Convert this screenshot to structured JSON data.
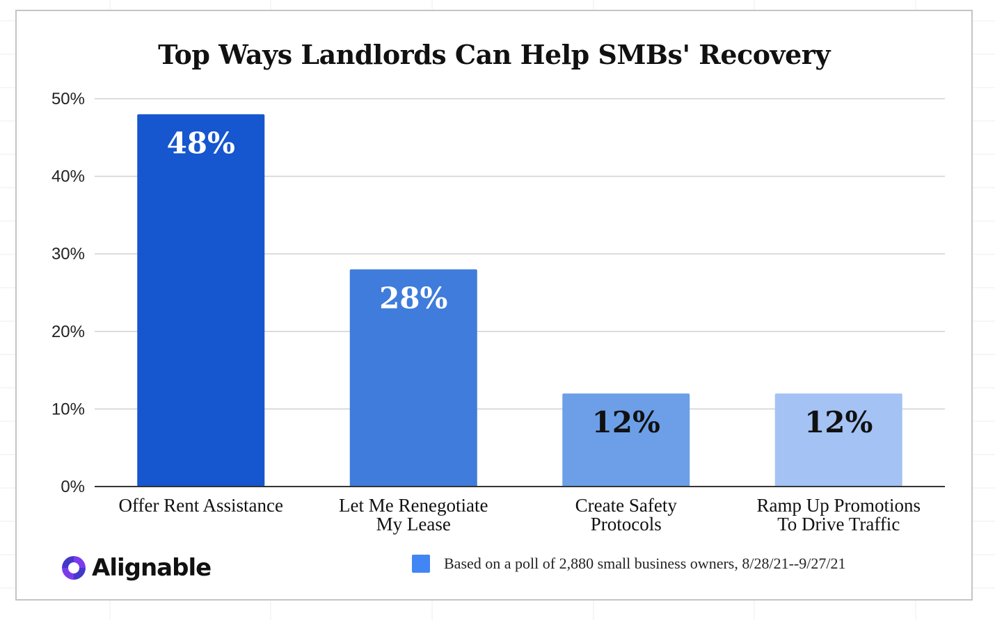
{
  "page": {
    "title": "Top Ways Landlords Can Help SMBs' Recovery"
  },
  "chart_data": {
    "type": "bar",
    "title": "Top Ways Landlords Can Help SMBs' Recovery",
    "categories": [
      [
        "Offer Rent Assistance"
      ],
      [
        "Let Me Renegotiate",
        "My Lease"
      ],
      [
        "Create Safety",
        "Protocols"
      ],
      [
        "Ramp Up Promotions",
        "To Drive Traffic"
      ]
    ],
    "values": [
      48,
      28,
      12,
      12
    ],
    "data_labels": [
      "48%",
      "28%",
      "12%",
      "12%"
    ],
    "bar_colors": [
      "#1656cf",
      "#3f7cdb",
      "#6c9fe8",
      "#a4c2f4"
    ],
    "label_colors": [
      "#ffffff",
      "#ffffff",
      "#111111",
      "#111111"
    ],
    "ylim": [
      0,
      50
    ],
    "yticks": [
      0,
      10,
      20,
      30,
      40,
      50
    ],
    "ytick_labels": [
      "0%",
      "10%",
      "20%",
      "30%",
      "40%",
      "50%"
    ],
    "xlabel": "",
    "ylabel": "",
    "grid": true,
    "legend": {
      "position": "bottom-right",
      "color": "#4285f4",
      "text": "Based on a poll of 2,880 small business owners, 8/28/21--9/27/21"
    }
  },
  "branding": {
    "logo_text": "Alignable",
    "logo_icon": "alignable-logo-icon",
    "colors": [
      "#7c3aed",
      "#4338ca"
    ]
  }
}
